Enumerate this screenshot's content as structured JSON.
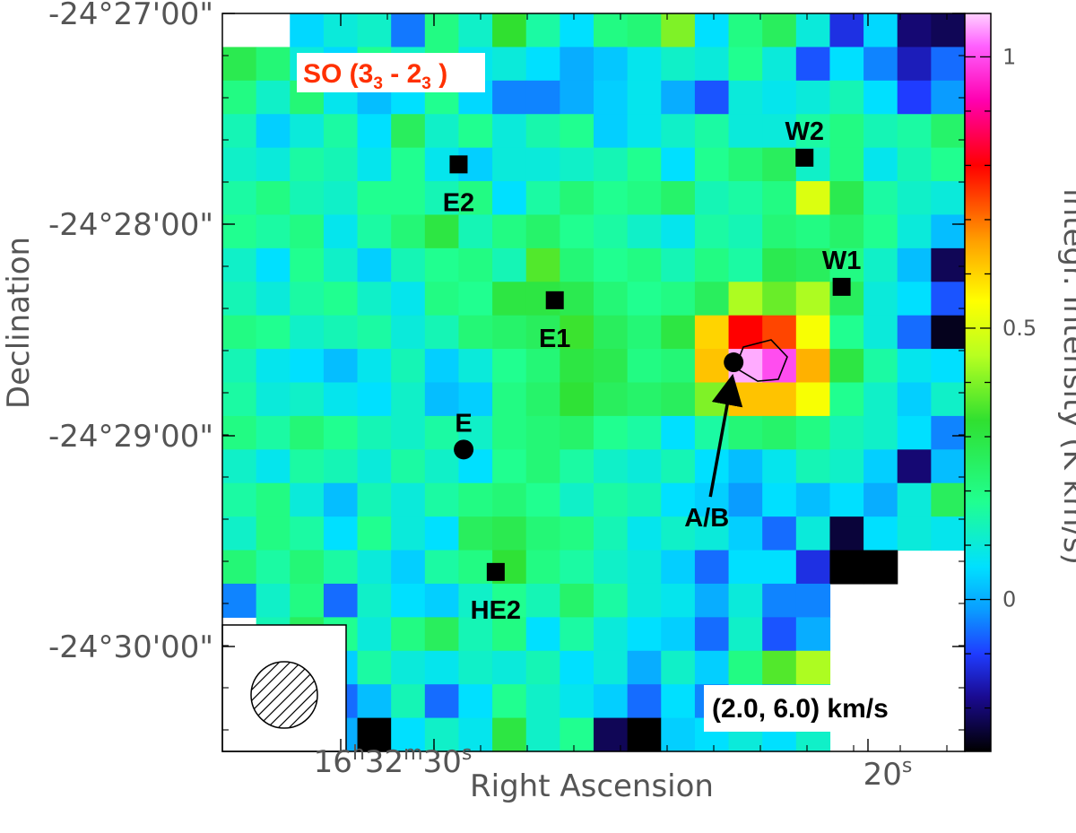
{
  "chart_data": {
    "type": "heatmap",
    "title_parts": [
      "SO (3",
      "3",
      " - 2",
      "3",
      " )"
    ],
    "velocity_range": "(2.0, 6.0) km/s",
    "xlabel": "Right Ascension",
    "ylabel": "Declination",
    "colorbar_label": "integr. Intensity (K km/s)",
    "colorbar_ticks": [
      "1",
      "0.5",
      "0"
    ],
    "colorbar_tick_values": [
      1.0,
      0.5,
      0.0
    ],
    "colorbar_range": [
      -0.28,
      1.08
    ],
    "x_ticks": [
      {
        "parts": [
          "16",
          "h",
          "32",
          "m",
          "30",
          "s"
        ]
      },
      {
        "parts": [
          "",
          "",
          "",
          "",
          "20",
          "s"
        ]
      }
    ],
    "y_ticks": [
      "-24°27'00\"",
      "-24°28'00\"",
      "-24°29'00\"",
      "-24°30'00\""
    ],
    "colormap": [
      [
        -0.28,
        "#000000"
      ],
      [
        -0.18,
        "#1a0a90"
      ],
      [
        -0.1,
        "#1f3cff"
      ],
      [
        -0.02,
        "#0a9cff"
      ],
      [
        0.06,
        "#00e0ff"
      ],
      [
        0.18,
        "#20ff90"
      ],
      [
        0.33,
        "#30e030"
      ],
      [
        0.45,
        "#b8ff20"
      ],
      [
        0.55,
        "#ffff00"
      ],
      [
        0.66,
        "#ffa000"
      ],
      [
        0.8,
        "#ff0000"
      ],
      [
        0.92,
        "#ff00b0"
      ],
      [
        1.02,
        "#ff60ff"
      ],
      [
        1.08,
        "#ffd0ff"
      ]
    ],
    "grid": {
      "cols": 22,
      "rows": 22,
      "values": [
        [
          null,
          null,
          0.05,
          0.1,
          0.12,
          -0.05,
          0.2,
          0.12,
          0.33,
          0.16,
          0.06,
          0.2,
          0.22,
          0.4,
          0.06,
          0.2,
          0.26,
          0.1,
          -0.12,
          0.05,
          -0.2,
          -0.22
        ],
        [
          0.28,
          0.22,
          0.1,
          0.05,
          0.18,
          0.12,
          0.2,
          0.08,
          0.1,
          0.06,
          0.0,
          0.03,
          0.08,
          0.12,
          0.1,
          0.18,
          0.1,
          -0.08,
          0.06,
          -0.04,
          -0.15,
          -0.06
        ],
        [
          0.2,
          0.12,
          0.22,
          0.08,
          0.02,
          0.06,
          0.18,
          0.05,
          -0.04,
          -0.04,
          0.0,
          0.04,
          0.08,
          0.0,
          -0.08,
          0.1,
          0.08,
          0.1,
          0.14,
          0.06,
          -0.1,
          -0.02
        ],
        [
          0.14,
          0.04,
          0.1,
          0.16,
          0.06,
          0.26,
          0.12,
          0.18,
          0.1,
          0.15,
          0.18,
          0.04,
          0.08,
          0.12,
          0.16,
          0.1,
          0.1,
          0.16,
          0.2,
          0.14,
          0.16,
          0.24
        ],
        [
          0.12,
          0.1,
          0.16,
          0.14,
          0.08,
          0.18,
          0.08,
          0.04,
          0.1,
          0.1,
          0.12,
          0.14,
          0.18,
          0.06,
          0.18,
          0.22,
          0.26,
          0.12,
          0.2,
          0.08,
          0.14,
          0.18
        ],
        [
          0.16,
          0.2,
          0.14,
          0.12,
          0.18,
          0.18,
          0.14,
          0.2,
          0.06,
          0.16,
          0.22,
          0.18,
          0.2,
          0.24,
          0.14,
          0.16,
          0.2,
          0.5,
          0.28,
          0.16,
          0.12,
          0.1
        ],
        [
          0.18,
          0.16,
          0.2,
          0.08,
          0.16,
          0.22,
          0.3,
          0.14,
          0.2,
          0.24,
          0.18,
          0.16,
          0.12,
          0.08,
          0.16,
          0.14,
          0.22,
          0.2,
          0.24,
          0.18,
          0.1,
          0.02
        ],
        [
          0.12,
          0.06,
          0.18,
          0.12,
          0.04,
          0.14,
          0.18,
          0.2,
          0.14,
          0.36,
          0.22,
          0.18,
          0.2,
          0.14,
          0.2,
          0.16,
          0.28,
          0.26,
          0.2,
          0.12,
          0.02,
          -0.22
        ],
        [
          0.14,
          0.1,
          0.16,
          0.18,
          0.12,
          0.08,
          0.2,
          0.18,
          0.3,
          0.3,
          0.28,
          0.22,
          0.18,
          0.2,
          0.26,
          0.44,
          0.38,
          0.44,
          0.26,
          0.1,
          0.06,
          -0.08
        ],
        [
          0.2,
          0.18,
          0.12,
          0.14,
          0.16,
          0.1,
          0.14,
          0.22,
          0.24,
          0.26,
          0.34,
          0.26,
          0.22,
          0.3,
          0.6,
          0.8,
          0.74,
          0.54,
          0.18,
          0.1,
          -0.06,
          -0.26
        ],
        [
          0.14,
          0.08,
          0.06,
          0.02,
          0.08,
          0.14,
          0.04,
          0.1,
          0.18,
          0.22,
          0.3,
          0.28,
          0.2,
          0.22,
          0.62,
          1.06,
          1.0,
          0.64,
          0.3,
          0.16,
          0.08,
          0.06
        ],
        [
          0.16,
          0.1,
          0.12,
          0.08,
          0.06,
          0.12,
          0.02,
          0.04,
          0.2,
          0.24,
          0.32,
          0.26,
          0.24,
          0.26,
          0.4,
          0.62,
          0.62,
          0.54,
          0.18,
          0.12,
          0.04,
          0.12
        ],
        [
          0.2,
          0.16,
          0.22,
          0.18,
          0.14,
          0.12,
          0.16,
          0.12,
          0.2,
          0.22,
          0.24,
          0.18,
          0.16,
          0.06,
          0.16,
          0.22,
          0.24,
          0.2,
          0.14,
          0.12,
          0.06,
          -0.04
        ],
        [
          0.12,
          0.08,
          0.16,
          0.14,
          0.1,
          0.16,
          0.12,
          0.06,
          0.18,
          0.22,
          0.16,
          0.12,
          0.1,
          0.14,
          0.06,
          0.02,
          0.08,
          0.14,
          0.12,
          0.04,
          -0.2,
          0.02
        ],
        [
          0.16,
          0.2,
          0.1,
          0.02,
          0.14,
          0.1,
          0.16,
          0.2,
          0.22,
          0.18,
          0.12,
          0.16,
          0.14,
          0.06,
          0.04,
          -0.02,
          0.06,
          0.02,
          0.06,
          0.0,
          0.1,
          0.26
        ],
        [
          0.12,
          0.2,
          0.16,
          0.06,
          0.18,
          0.1,
          0.06,
          0.26,
          0.28,
          0.22,
          0.2,
          0.14,
          0.08,
          0.12,
          0.1,
          0.04,
          -0.06,
          0.1,
          -0.24,
          0.06,
          0.1,
          0.08
        ],
        [
          0.22,
          0.16,
          0.22,
          0.16,
          0.1,
          0.04,
          0.16,
          0.2,
          0.32,
          0.2,
          0.16,
          0.12,
          0.1,
          0.04,
          -0.06,
          0.06,
          0.06,
          -0.12,
          -0.28,
          -0.28,
          null,
          null
        ],
        [
          -0.04,
          0.12,
          0.2,
          -0.06,
          0.12,
          0.06,
          0.04,
          0.12,
          0.18,
          0.14,
          0.24,
          0.16,
          0.1,
          0.08,
          0.0,
          0.1,
          -0.04,
          -0.04,
          null,
          null,
          null,
          null
        ],
        [
          null,
          0.14,
          0.26,
          0.18,
          0.1,
          0.2,
          0.26,
          0.14,
          0.2,
          0.06,
          0.16,
          0.1,
          0.06,
          0.04,
          -0.06,
          0.12,
          -0.08,
          0.0,
          null,
          null,
          null,
          null
        ],
        [
          null,
          null,
          null,
          0.04,
          0.16,
          0.1,
          0.08,
          0.12,
          0.1,
          0.14,
          0.06,
          0.1,
          0.0,
          0.12,
          0.04,
          0.2,
          0.36,
          0.44,
          null,
          null,
          null,
          null
        ],
        [
          null,
          null,
          null,
          -0.06,
          0.02,
          0.14,
          -0.06,
          0.06,
          0.18,
          0.12,
          0.08,
          0.04,
          -0.06,
          0.06,
          -0.04,
          0.06,
          0.0,
          0.1,
          null,
          null,
          null,
          null
        ],
        [
          null,
          null,
          null,
          0.0,
          -0.28,
          0.06,
          0.12,
          0.08,
          0.3,
          0.12,
          0.18,
          -0.22,
          -0.28,
          0.04,
          0.06,
          0.1,
          0.06,
          0.12,
          null,
          null,
          null,
          null
        ]
      ]
    },
    "sources": [
      {
        "name": "E2",
        "marker": "square",
        "col": 7.0,
        "row": 4.5,
        "label_dir": "below"
      },
      {
        "name": "W2",
        "marker": "square",
        "col": 17.25,
        "row": 4.3,
        "label_dir": "above"
      },
      {
        "name": "W1",
        "marker": "square",
        "col": 18.35,
        "row": 8.15,
        "label_dir": "above"
      },
      {
        "name": "E1",
        "marker": "square",
        "col": 9.85,
        "row": 8.55,
        "label_dir": "below"
      },
      {
        "name": "E",
        "marker": "circle",
        "col": 7.15,
        "row": 13.0,
        "label_dir": "above"
      },
      {
        "name": "HE2",
        "marker": "square",
        "col": 8.1,
        "row": 16.65,
        "label_dir": "below"
      },
      {
        "name": "A/B",
        "marker": "circle",
        "col": 15.15,
        "row": 10.4,
        "label_dir": "arrow"
      }
    ]
  }
}
